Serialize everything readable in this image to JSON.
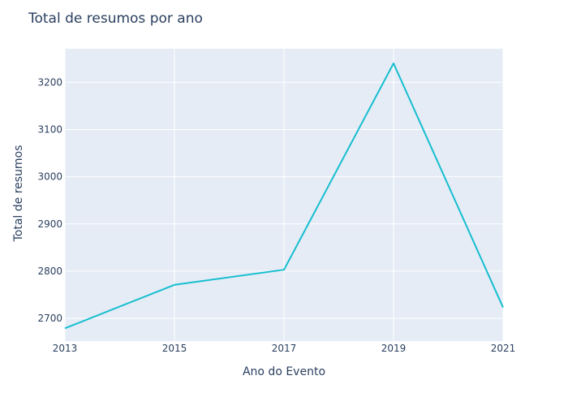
{
  "chart_data": {
    "type": "line",
    "title": "Total de resumos por ano",
    "xlabel": "Ano do Evento",
    "ylabel": "Total de resumos",
    "x": [
      2013,
      2015,
      2017,
      2019,
      2021
    ],
    "series": [
      {
        "values": [
          2679,
          2771,
          2803,
          3240,
          2723
        ]
      }
    ],
    "xticks": [
      2013,
      2015,
      2017,
      2019,
      2021
    ],
    "yticks": [
      2700,
      2800,
      2900,
      3000,
      3100,
      3200
    ],
    "xlim": [
      2013,
      2021
    ],
    "ylim": [
      2652,
      3271
    ],
    "grid": true,
    "colors": {
      "line": "#17becf",
      "plot_background": "#e5ecf6",
      "grid": "#ffffff",
      "text": "#2a3f5f"
    }
  }
}
